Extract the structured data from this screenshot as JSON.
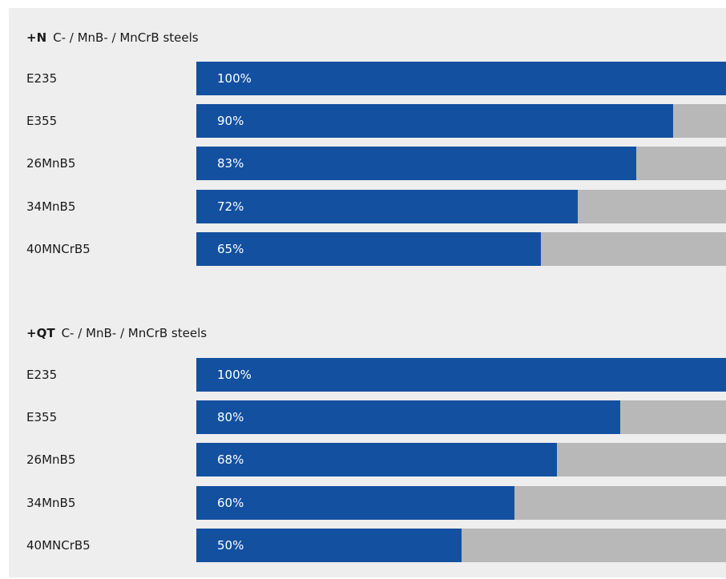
{
  "chart_data": [
    {
      "type": "bar",
      "orientation": "horizontal",
      "title": "+N",
      "subtitle": "C- / MnB- / MnCrB steels",
      "categories": [
        "E235",
        "E355",
        "26MnB5",
        "34MnB5",
        "40MNCrB5"
      ],
      "values": [
        100,
        90,
        83,
        72,
        65
      ],
      "labels": [
        "100%",
        "90%",
        "83%",
        "72%",
        "65%"
      ],
      "xlim": [
        0,
        100
      ],
      "grid": false,
      "legend": "none"
    },
    {
      "type": "bar",
      "orientation": "horizontal",
      "title": "+QT",
      "subtitle": "C- / MnB- / MnCrB steels",
      "categories": [
        "E235",
        "E355",
        "26MnB5",
        "34MnB5",
        "40MNCrB5"
      ],
      "values": [
        100,
        80,
        68,
        60,
        50
      ],
      "labels": [
        "100%",
        "80%",
        "68%",
        "60%",
        "50%"
      ],
      "xlim": [
        0,
        100
      ],
      "grid": false,
      "legend": "none"
    }
  ],
  "colors": {
    "bar_fill": "#1450a0",
    "bar_track": "#b8b8b8",
    "panel_background": "#eeeeee"
  }
}
